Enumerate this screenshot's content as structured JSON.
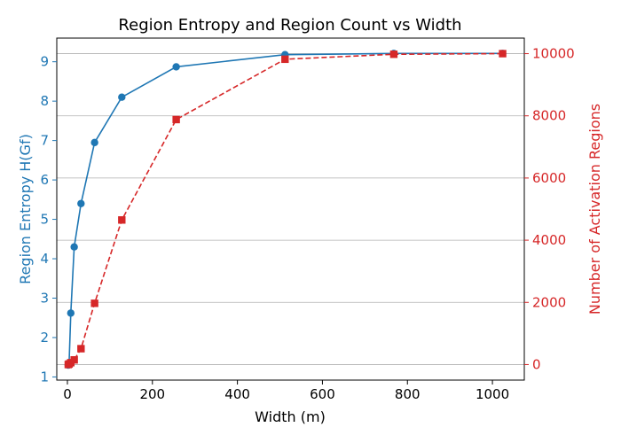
{
  "chart_data": {
    "type": "line",
    "title": "Region Entropy and Region Count vs Width",
    "xlabel": "Width (m)",
    "ylabel_left": "Region Entropy H(Gf)",
    "ylabel_right": "Number of Activation Regions",
    "xlim": [
      -25,
      1075
    ],
    "ylim_left": [
      0.92,
      9.6
    ],
    "ylim_right": [
      -500,
      10500
    ],
    "xticks": [
      0,
      200,
      400,
      600,
      800,
      1000
    ],
    "yticks_left": [
      1,
      2,
      3,
      4,
      5,
      6,
      7,
      8,
      9
    ],
    "yticks_right": [
      0,
      2000,
      4000,
      6000,
      8000,
      10000
    ],
    "grid": "horizontal",
    "colors": {
      "left": "#1f77b4",
      "right": "#d62728"
    },
    "series": [
      {
        "axis": "left",
        "marker": "circle",
        "line": "solid",
        "color": "#1f77b4",
        "x": [
          2,
          4,
          8,
          16,
          32,
          64,
          128,
          256,
          512,
          768,
          1024
        ],
        "y": [
          1.3,
          1.35,
          2.62,
          4.3,
          5.4,
          6.95,
          8.1,
          8.87,
          9.18,
          9.21,
          9.21
        ]
      },
      {
        "axis": "right",
        "marker": "square",
        "line": "dashed",
        "color": "#d62728",
        "x": [
          2,
          4,
          8,
          16,
          32,
          64,
          128,
          256,
          512,
          768,
          1024
        ],
        "y": [
          0,
          20,
          60,
          150,
          510,
          1970,
          4650,
          7880,
          9820,
          9980,
          10000
        ]
      }
    ]
  }
}
